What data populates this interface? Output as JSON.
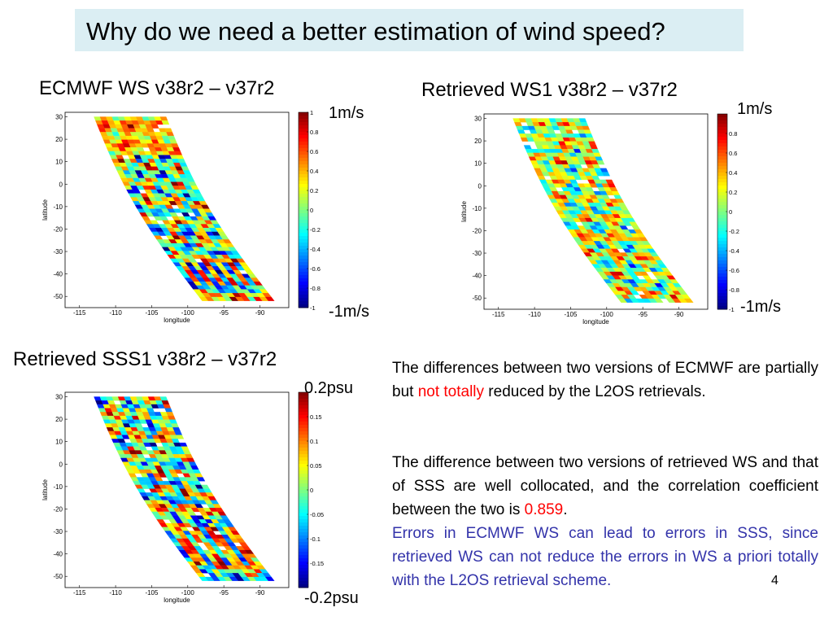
{
  "title": "Why do we need a better estimation of wind speed?",
  "panels": {
    "ecmwf": {
      "title": "ECMWF WS v38r2 – v37r2",
      "cb_max": "1m/s",
      "cb_min": "-1m/s"
    },
    "ws1": {
      "title": "Retrieved WS1 v38r2 – v37r2",
      "cb_max": "1m/s",
      "cb_min": "-1m/s"
    },
    "sss1": {
      "title": "Retrieved SSS1 v38r2 – v37r2",
      "cb_max": "0.2psu",
      "cb_min": "-0.2psu"
    }
  },
  "text": {
    "para1_a": "The differences between two versions of ECMWF are partially but ",
    "para1_red": "not totally",
    "para1_b": " reduced by the L2OS retrievals.",
    "para2_a": "The difference between two versions of retrieved WS and that of SSS are well collocated, and the correlation coefficient between the two is ",
    "para2_red": "0.859",
    "para2_b": ".",
    "para3": "Errors in ECMWF WS can lead to errors in SSS, since retrieved WS can not reduce the errors in WS a priori totally with the L2OS retrieval scheme."
  },
  "page_number": "4",
  "colors": {
    "title_bg": "#dbeef3",
    "highlight": "#ff0000",
    "note": "#3333aa"
  },
  "chart_data": [
    {
      "type": "heatmap",
      "name": "ecmwf",
      "xlabel": "longitude",
      "ylabel": "latitude",
      "xlim": [
        -117,
        -86
      ],
      "ylim": [
        -55,
        32
      ],
      "xticks": [
        -115,
        -110,
        -105,
        -100,
        -95,
        -90
      ],
      "yticks": [
        30,
        20,
        10,
        0,
        -10,
        -20,
        -30,
        -40,
        -50
      ],
      "colorbar_ticks": [
        "1",
        "0.8",
        "0.6",
        "0.4",
        "0.2",
        "0",
        "-0.2",
        "-0.4",
        "-0.6",
        "-0.8",
        "-1"
      ],
      "colorbar_range": [
        -1,
        1
      ],
      "swath_longitude_top": [
        -113,
        -103
      ],
      "swath_longitude_bottom": [
        -98,
        -88
      ]
    },
    {
      "type": "heatmap",
      "name": "ws1",
      "xlabel": "longitude",
      "ylabel": "latitude",
      "xlim": [
        -117,
        -86
      ],
      "ylim": [
        -55,
        32
      ],
      "xticks": [
        -115,
        -110,
        -105,
        -100,
        -95,
        -90
      ],
      "yticks": [
        30,
        20,
        10,
        0,
        -10,
        -20,
        -30,
        -40,
        -50
      ],
      "colorbar_ticks": [
        "",
        "0.8",
        "0.6",
        "0.4",
        "0.2",
        "0",
        "-0.2",
        "-0.4",
        "-0.6",
        "-0.8",
        "-1"
      ],
      "colorbar_range": [
        -1,
        1
      ],
      "swath_longitude_top": [
        -113,
        -103
      ],
      "swath_longitude_bottom": [
        -98,
        -88
      ]
    },
    {
      "type": "heatmap",
      "name": "sss1",
      "xlabel": "longitude",
      "ylabel": "latitude",
      "xlim": [
        -117,
        -86
      ],
      "ylim": [
        -55,
        32
      ],
      "xticks": [
        -115,
        -110,
        -105,
        -100,
        -95,
        -90
      ],
      "yticks": [
        30,
        20,
        10,
        0,
        -10,
        -20,
        -30,
        -40,
        -50
      ],
      "colorbar_ticks": [
        "0.15",
        "0.1",
        "0.05",
        "0",
        "-0.05",
        "-0.1",
        "-0.15"
      ],
      "colorbar_range": [
        -0.2,
        0.2
      ],
      "swath_longitude_top": [
        -113,
        -103
      ],
      "swath_longitude_bottom": [
        -98,
        -88
      ]
    }
  ]
}
